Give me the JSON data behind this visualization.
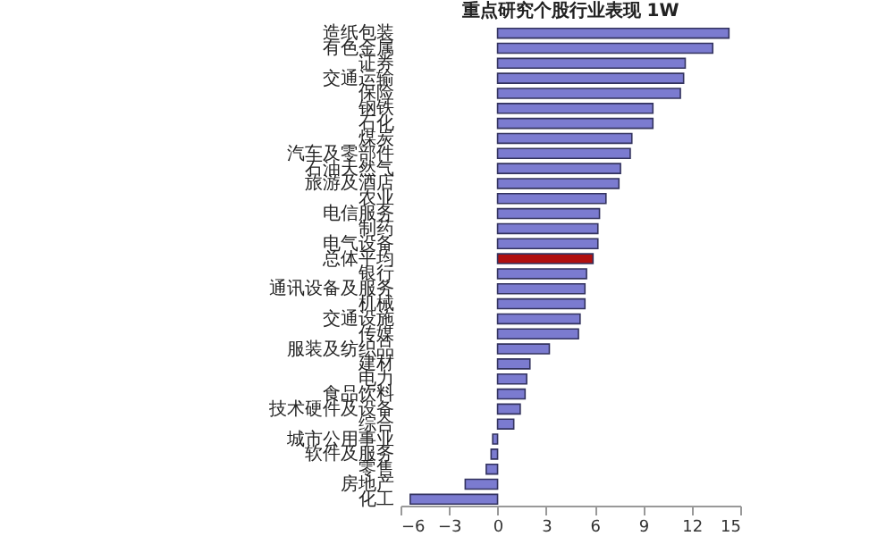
{
  "chart_data": {
    "type": "bar",
    "orientation": "horizontal",
    "title": "重点研究个股行业表现 1W",
    "categories": [
      "造纸包装",
      "有色金属",
      "证券",
      "交通运输",
      "保险",
      "钢铁",
      "石化",
      "煤炭",
      "汽车及零部件",
      "石油天然气",
      "旅游及酒店",
      "农业",
      "电信服务",
      "制药",
      "电气设备",
      "总体平均",
      "银行",
      "通讯设备及服务",
      "机械",
      "交通设施",
      "传媒",
      "服装及纺织品",
      "建材",
      "电力",
      "食品饮料",
      "技术硬件及设备",
      "综合",
      "城市公用事业",
      "软件及服务",
      "零售",
      "房地产",
      "化工"
    ],
    "values": [
      14.3,
      13.3,
      11.6,
      11.5,
      11.3,
      9.6,
      9.6,
      8.3,
      8.2,
      7.6,
      7.5,
      6.7,
      6.3,
      6.2,
      6.2,
      5.9,
      5.5,
      5.4,
      5.4,
      5.1,
      5.0,
      3.2,
      2.0,
      1.8,
      1.7,
      1.4,
      1.0,
      -0.3,
      -0.4,
      -0.7,
      -2.0,
      -5.4
    ],
    "colors": [
      "#7b7bd0",
      "#7b7bd0",
      "#7b7bd0",
      "#7b7bd0",
      "#7b7bd0",
      "#7b7bd0",
      "#7b7bd0",
      "#7b7bd0",
      "#7b7bd0",
      "#7b7bd0",
      "#7b7bd0",
      "#7b7bd0",
      "#7b7bd0",
      "#7b7bd0",
      "#7b7bd0",
      "#b01010",
      "#7b7bd0",
      "#7b7bd0",
      "#7b7bd0",
      "#7b7bd0",
      "#7b7bd0",
      "#7b7bd0",
      "#7b7bd0",
      "#7b7bd0",
      "#7b7bd0",
      "#7b7bd0",
      "#7b7bd0",
      "#7b7bd0",
      "#7b7bd0",
      "#7b7bd0",
      "#7b7bd0",
      "#7b7bd0"
    ],
    "xlim": [
      -6,
      15
    ],
    "xticks": [
      -6,
      -3,
      0,
      3,
      6,
      9,
      12,
      15
    ],
    "grid": false
  }
}
